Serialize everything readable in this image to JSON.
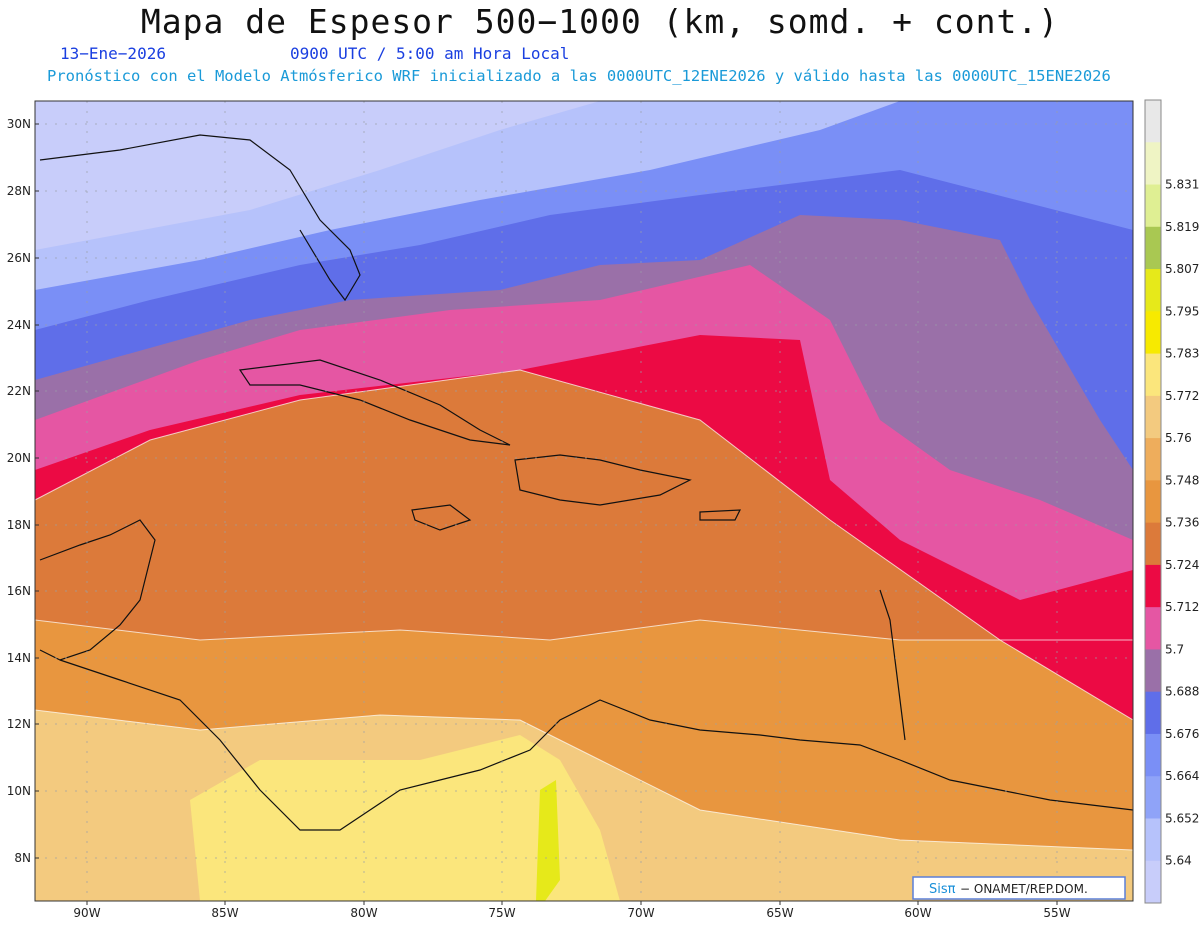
{
  "title": "Mapa de Espesor 500−1000 (km, somd. + cont.)",
  "date": "13−Ene−2026",
  "time": "0900 UTC / 5:00 am Hora Local",
  "description": "Pronóstico con el Modelo Atmósferico WRF inicializado a las 0000UTC_12ENE2026 y válido hasta las  0000UTC_15ENE2026",
  "lat_ticks": [
    "30N",
    "28N",
    "26N",
    "24N",
    "22N",
    "20N",
    "18N",
    "16N",
    "14N",
    "12N",
    "10N",
    "8N"
  ],
  "lon_ticks": [
    "90W",
    "85W",
    "80W",
    "75W",
    "70W",
    "65W",
    "60W",
    "55W"
  ],
  "colorbar": {
    "labels": [
      "5.64",
      "5.652",
      "5.664",
      "5.676",
      "5.688",
      "5.7",
      "5.712",
      "5.724",
      "5.736",
      "5.748",
      "5.76",
      "5.772",
      "5.783",
      "5.795",
      "5.807",
      "5.819",
      "5.831"
    ],
    "colors": [
      "#c8cdfa",
      "#b6c2fb",
      "#8fa3f8",
      "#7a8ff6",
      "#5f6ee9",
      "#9a70a8",
      "#e556a3",
      "#ec0a44",
      "#dc7a3a",
      "#e8963f",
      "#eead5c",
      "#f3ca7f",
      "#fbe67c",
      "#f7ea00",
      "#e6e91a",
      "#a9c852",
      "#dfef93",
      "#eff4c4",
      "#e8e8e8"
    ]
  },
  "logo": {
    "sis": "Sisπ",
    "text": " − ONAMET/REP.DOM."
  }
}
